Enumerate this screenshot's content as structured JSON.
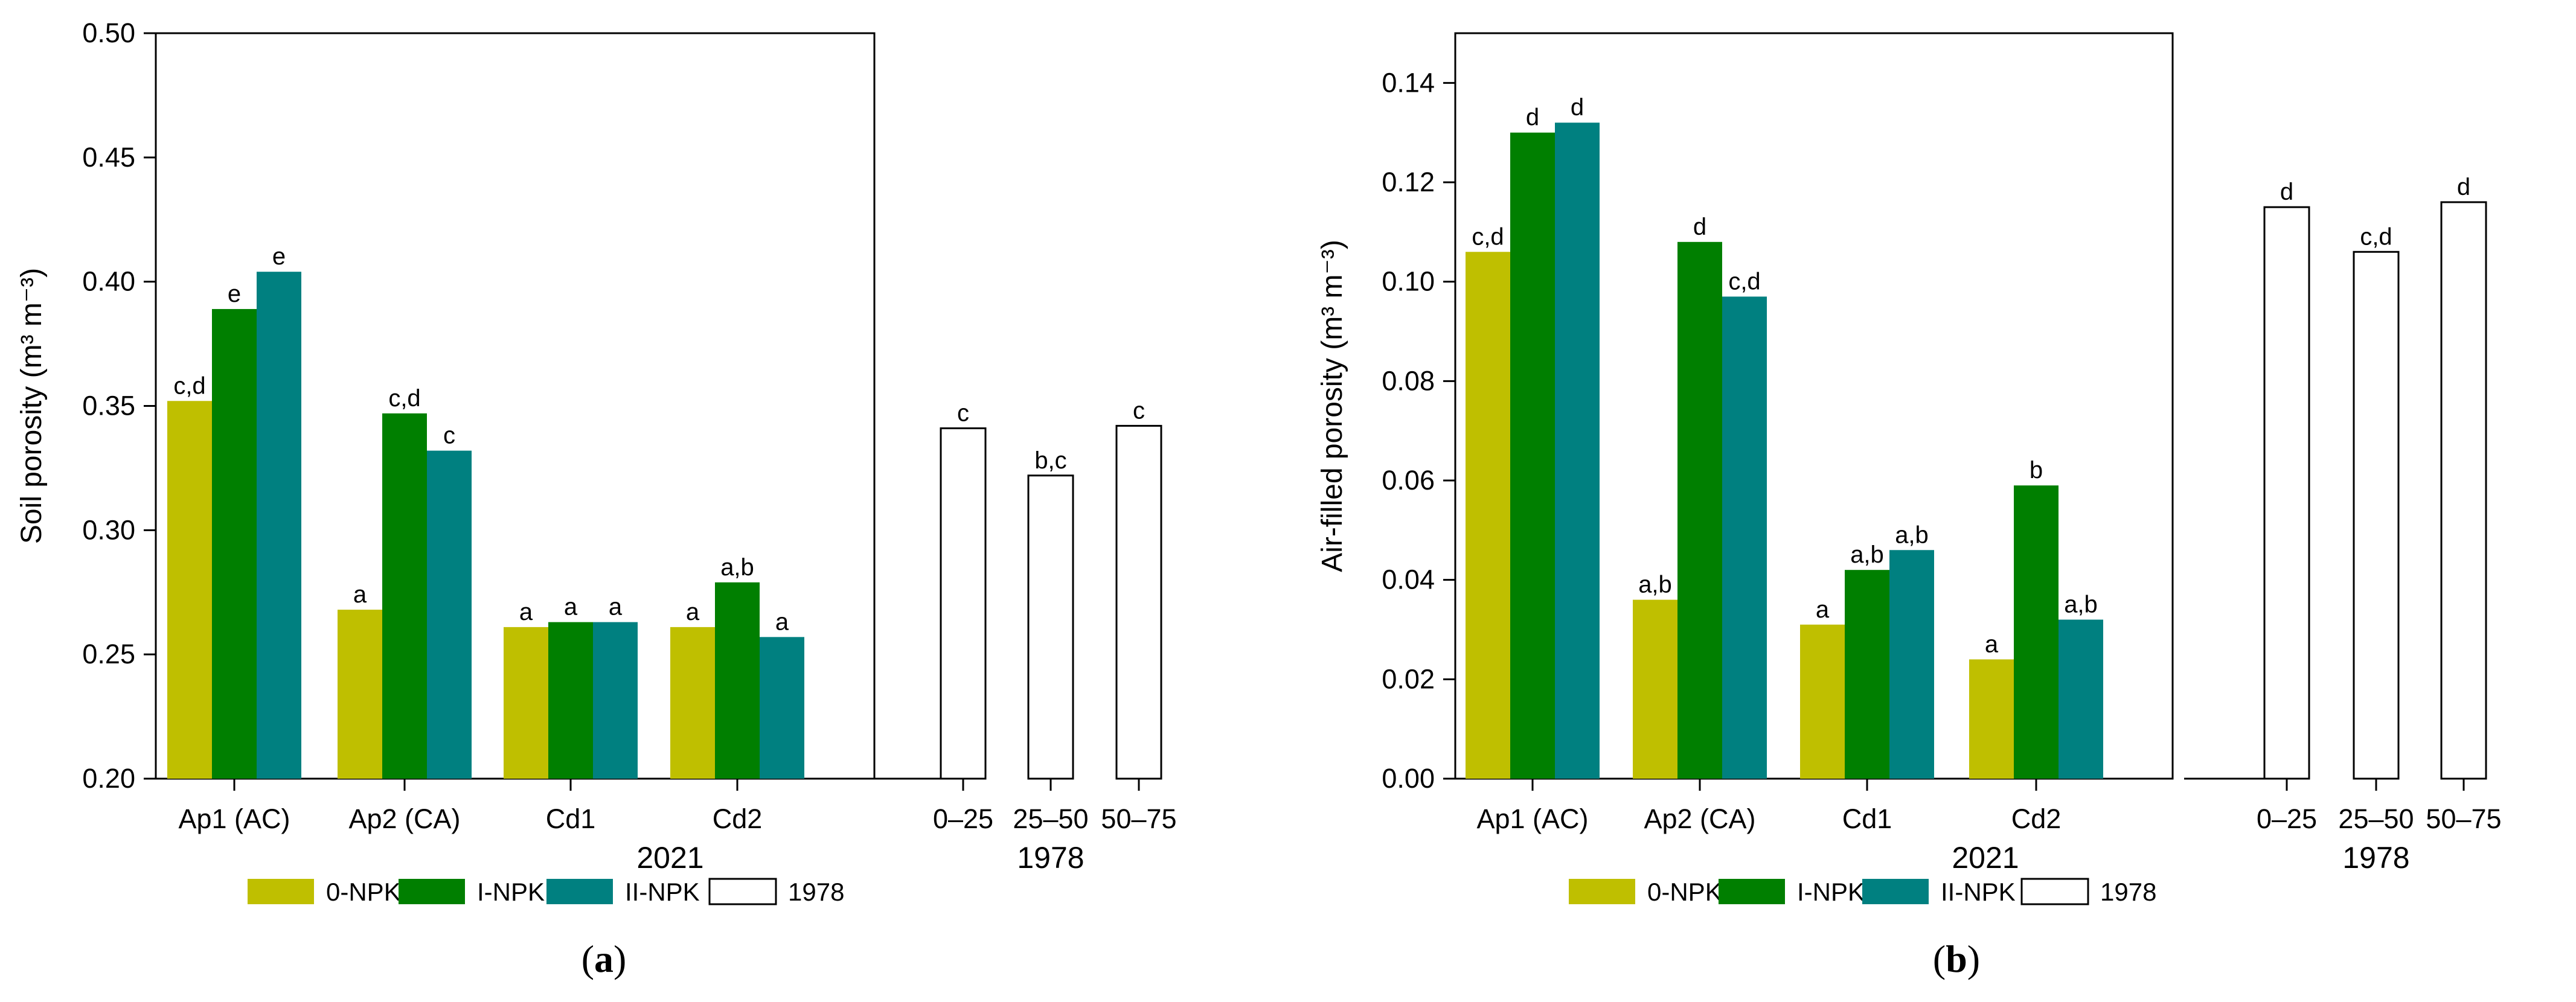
{
  "colors": {
    "0-NPK": "#bfbf00",
    "I-NPK": "#007f00",
    "II-NPK": "#008080",
    "1978": "#ffffff"
  },
  "legend": [
    "0-NPK",
    "I-NPK",
    "II-NPK",
    "1978"
  ],
  "chart_data": [
    {
      "type": "bar",
      "panel": "a",
      "ylabel": "Soil porosity (m³ m⁻³)",
      "ylim": [
        0.2,
        0.5
      ],
      "yticks": [
        "0.20",
        "0.25",
        "0.30",
        "0.35",
        "0.40",
        "0.45",
        "0.50"
      ],
      "group_labels": [
        "2021",
        "1978"
      ],
      "categories_2021": [
        "Ap1 (AC)",
        "Ap2 (CA)",
        "Cd1",
        "Cd2"
      ],
      "categories_1978": [
        "0–25",
        "25–50",
        "50–75"
      ],
      "series": [
        {
          "name": "0-NPK",
          "values": [
            0.352,
            0.268,
            0.261,
            0.261
          ],
          "letters": [
            "c,d",
            "a",
            "a",
            "a"
          ]
        },
        {
          "name": "I-NPK",
          "values": [
            0.389,
            0.347,
            0.263,
            0.279
          ],
          "letters": [
            "e",
            "c,d",
            "a",
            "a,b"
          ]
        },
        {
          "name": "II-NPK",
          "values": [
            0.404,
            0.332,
            0.263,
            0.257
          ],
          "letters": [
            "e",
            "c",
            "a",
            "a"
          ]
        }
      ],
      "series_1978": {
        "name": "1978",
        "values": [
          0.341,
          0.322,
          0.342
        ],
        "letters": [
          "c",
          "b,c",
          "c"
        ]
      },
      "caption": "a"
    },
    {
      "type": "bar",
      "panel": "b",
      "ylabel": "Air-filled porosity (m³ m⁻³)",
      "ylim": [
        0.0,
        0.15
      ],
      "yticks": [
        "0.00",
        "0.02",
        "0.04",
        "0.06",
        "0.08",
        "0.10",
        "0.12",
        "0.14"
      ],
      "group_labels": [
        "2021",
        "1978"
      ],
      "categories_2021": [
        "Ap1 (AC)",
        "Ap2 (CA)",
        "Cd1",
        "Cd2"
      ],
      "categories_1978": [
        "0–25",
        "25–50",
        "50–75"
      ],
      "series": [
        {
          "name": "0-NPK",
          "values": [
            0.106,
            0.036,
            0.031,
            0.024
          ],
          "letters": [
            "c,d",
            "a,b",
            "a",
            "a"
          ]
        },
        {
          "name": "I-NPK",
          "values": [
            0.13,
            0.108,
            0.042,
            0.059
          ],
          "letters": [
            "d",
            "d",
            "a,b",
            "b"
          ]
        },
        {
          "name": "II-NPK",
          "values": [
            0.132,
            0.097,
            0.046,
            0.032
          ],
          "letters": [
            "d",
            "c,d",
            "a,b",
            "a,b"
          ]
        }
      ],
      "series_1978": {
        "name": "1978",
        "values": [
          0.115,
          0.106,
          0.116
        ],
        "letters": [
          "d",
          "c,d",
          "d"
        ]
      },
      "caption": "b"
    }
  ]
}
